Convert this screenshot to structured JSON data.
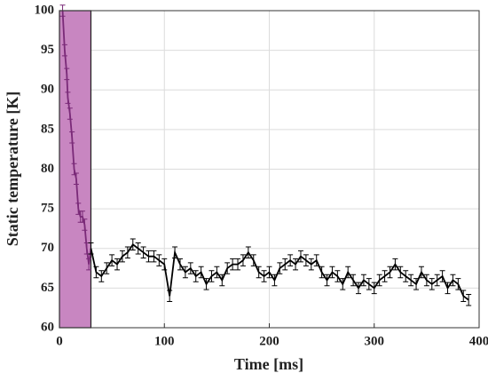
{
  "chart_data": {
    "type": "line",
    "xlabel": "Time [ms]",
    "ylabel": "Static temperature [K]",
    "xlim": [
      0,
      400
    ],
    "xticks": [
      0,
      100,
      200,
      300,
      400
    ],
    "ylim": [
      60,
      100
    ],
    "yticks": [
      60,
      65,
      70,
      75,
      80,
      85,
      90,
      95,
      100
    ],
    "grid": true,
    "shade": {
      "xlim": [
        0,
        30
      ],
      "color": "#c886c1"
    },
    "series": [
      {
        "color": "#7a2a78",
        "error": 0.7,
        "x": [
          3,
          5,
          7,
          8,
          10,
          12,
          14,
          16,
          18,
          20,
          22,
          24,
          26,
          28,
          30
        ],
        "values": [
          100,
          95,
          92,
          89,
          87,
          84,
          80,
          78.8,
          75,
          74,
          74,
          73,
          70,
          68,
          70
        ]
      },
      {
        "color": "#000000",
        "error": 0.7,
        "x": [
          30,
          35,
          40,
          45,
          50,
          55,
          60,
          65,
          70,
          75,
          80,
          85,
          90,
          95,
          100,
          105,
          110,
          115,
          120,
          125,
          130,
          135,
          140,
          145,
          150,
          155,
          160,
          165,
          170,
          175,
          180,
          185,
          190,
          195,
          200,
          205,
          210,
          215,
          220,
          225,
          230,
          235,
          240,
          245,
          250,
          255,
          260,
          265,
          270,
          275,
          280,
          285,
          290,
          295,
          300,
          305,
          310,
          315,
          320,
          325,
          330,
          335,
          340,
          345,
          350,
          355,
          360,
          365,
          370,
          375,
          380,
          385,
          390
        ],
        "values": [
          70,
          67,
          66.5,
          67.5,
          68.5,
          68,
          69,
          69.5,
          70.5,
          70,
          69.5,
          69,
          69,
          68.5,
          68,
          64,
          69.5,
          68,
          67,
          67.5,
          66.5,
          67,
          65.5,
          66.5,
          67,
          66,
          67.5,
          68,
          68,
          68.5,
          69.5,
          68.5,
          67,
          66.5,
          67,
          66,
          67.5,
          68,
          68.5,
          68,
          69,
          68.5,
          68,
          68.5,
          67,
          66,
          67,
          66.5,
          65.5,
          67,
          66,
          65,
          66,
          65.5,
          65,
          66,
          66.5,
          67,
          68,
          67,
          66.5,
          66,
          65.5,
          67,
          66,
          65.5,
          66,
          66.5,
          65,
          66,
          65.5,
          64,
          63.5
        ]
      }
    ]
  }
}
